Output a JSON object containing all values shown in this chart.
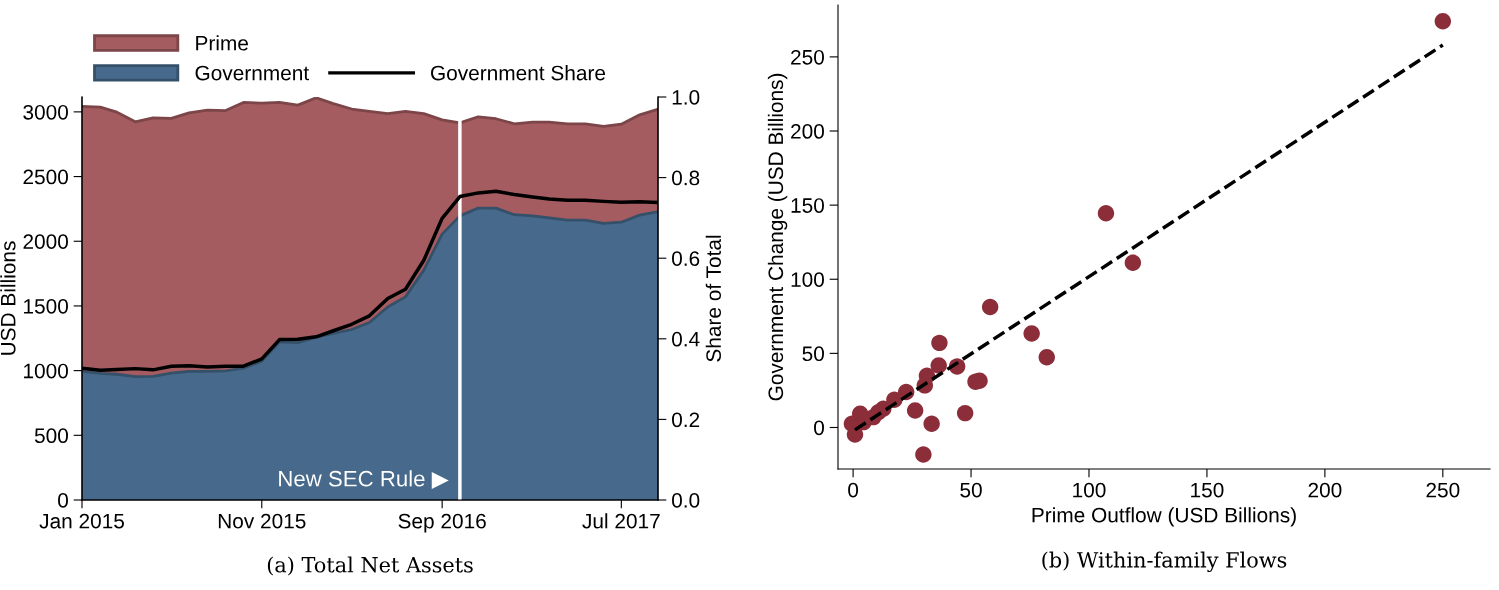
{
  "chart_data": [
    {
      "type": "area",
      "title": "(a) Total Net Assets",
      "ylabel": "USD Billions",
      "y2label": "Share of Total",
      "stacked": true,
      "legend": "top",
      "grid": false,
      "x": [
        "2015-01",
        "2015-02",
        "2015-03",
        "2015-04",
        "2015-05",
        "2015-06",
        "2015-07",
        "2015-08",
        "2015-09",
        "2015-10",
        "2015-11",
        "2015-12",
        "2016-01",
        "2016-02",
        "2016-03",
        "2016-04",
        "2016-05",
        "2016-06",
        "2016-07",
        "2016-08",
        "2016-09",
        "2016-10",
        "2016-11",
        "2016-12",
        "2017-01",
        "2017-02",
        "2017-03",
        "2017-04",
        "2017-05",
        "2017-06",
        "2017-07",
        "2017-08",
        "2017-09"
      ],
      "series": [
        {
          "name": "Government",
          "type": "area",
          "color": "#476a8c",
          "values": [
            995,
            978,
            972,
            953,
            955,
            980,
            995,
            995,
            998,
            1019,
            1073,
            1223,
            1217,
            1258,
            1288,
            1318,
            1372,
            1492,
            1570,
            1777,
            2055,
            2196,
            2256,
            2256,
            2205,
            2196,
            2181,
            2163,
            2163,
            2139,
            2147,
            2202,
            2229
          ]
        },
        {
          "name": "Prime",
          "type": "area",
          "color": "#a55c60",
          "values": [
            2048,
            2059,
            2026,
            1970,
            1998,
            1970,
            1997,
            2018,
            2012,
            2054,
            1994,
            1850,
            1835,
            1851,
            1776,
            1704,
            1632,
            1494,
            1434,
            1209,
            883,
            719,
            706,
            691,
            703,
            724,
            739,
            745,
            745,
            749,
            758,
            775,
            791
          ]
        },
        {
          "name": "Government Share",
          "type": "line",
          "axis": "y2",
          "color": "#000000",
          "values": [
            0.327,
            0.322,
            0.324,
            0.326,
            0.323,
            0.332,
            0.333,
            0.33,
            0.332,
            0.332,
            0.35,
            0.398,
            0.399,
            0.405,
            0.42,
            0.436,
            0.457,
            0.5,
            0.523,
            0.595,
            0.699,
            0.753,
            0.762,
            0.766,
            0.758,
            0.752,
            0.747,
            0.744,
            0.744,
            0.741,
            0.739,
            0.74,
            0.738
          ]
        }
      ],
      "xlim": [
        "2015-01",
        "2017-09"
      ],
      "xticks": [
        {
          "value": "2015-01",
          "label": "Jan 2015"
        },
        {
          "value": "2015-11",
          "label": "Nov 2015"
        },
        {
          "value": "2016-09",
          "label": "Sep 2016"
        },
        {
          "value": "2017-07",
          "label": "Jul 2017"
        }
      ],
      "ylim": [
        0,
        3115
      ],
      "yticks": [
        0,
        500,
        1000,
        1500,
        2000,
        2500,
        3000
      ],
      "y2lim": [
        0,
        1
      ],
      "y2ticks": [
        {
          "value": 0,
          "label": "0.0"
        },
        {
          "value": 0.2,
          "label": "0.2"
        },
        {
          "value": 0.4,
          "label": "0.4"
        },
        {
          "value": 0.6,
          "label": "0.6"
        },
        {
          "value": 0.8,
          "label": "0.8"
        },
        {
          "value": 1,
          "label": "1.0"
        }
      ],
      "ref_lines": [
        {
          "axis": "x",
          "value": "2016-10",
          "color": "#ffffff"
        }
      ],
      "annotations": [
        {
          "text": "New SEC Rule ▶",
          "x": "2016-10",
          "y": 150
        }
      ]
    },
    {
      "type": "scatter",
      "title": "(b) Within-family Flows",
      "xlabel": "Prime Outflow (USD Billions)",
      "ylabel": "Government Change (USD Billions)",
      "grid": false,
      "legend": false,
      "series": [
        {
          "type": "scatter",
          "color": "#8b2e3a",
          "marker": "circle",
          "x": [
            250,
            107.2,
            118.6,
            58.1,
            75.7,
            82.1,
            36.6,
            36.3,
            44.1,
            31.3,
            51.9,
            53.6,
            30.4,
            22.5,
            17.5,
            26.3,
            47.5,
            33.3,
            29.8,
            12.8,
            10.7,
            8.6,
            3.0,
            -0.5,
            0.8,
            4.4
          ],
          "values": [
            274,
            144.5,
            111.1,
            81.3,
            63.4,
            47.4,
            57.1,
            41.8,
            41.2,
            34.9,
            30.9,
            31.5,
            28.4,
            23.9,
            18.7,
            11.5,
            9.7,
            2.5,
            -18.2,
            12.6,
            10.3,
            7.0,
            9.3,
            2.5,
            -4.7,
            3.6
          ]
        },
        {
          "type": "line",
          "color": "#000000",
          "line_style": "dashed",
          "x": [
            0.8,
            250
          ],
          "values": [
            -1.6,
            258
          ]
        }
      ],
      "xlim": [
        -6.4,
        270
      ],
      "xticks": [
        0,
        50,
        100,
        150,
        200,
        250
      ],
      "ylim": [
        -28,
        285
      ],
      "yticks": [
        0,
        50,
        100,
        150,
        200,
        250
      ]
    }
  ]
}
